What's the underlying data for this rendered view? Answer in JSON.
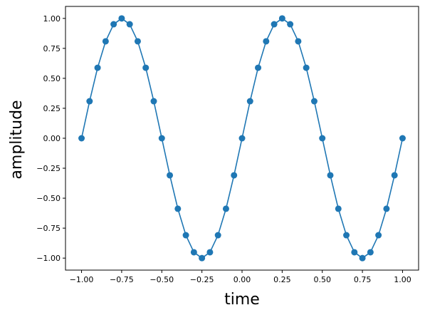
{
  "chart_data": {
    "type": "line",
    "xlabel": "time",
    "ylabel": "amplitude",
    "xlim": [
      -1.1,
      1.1
    ],
    "ylim": [
      -1.1,
      1.1
    ],
    "xticks": [
      -1.0,
      -0.75,
      -0.5,
      -0.25,
      0.0,
      0.25,
      0.5,
      0.75,
      1.0
    ],
    "xtick_labels": [
      "−1.00",
      "−0.75",
      "−0.50",
      "−0.25",
      "0.00",
      "0.25",
      "0.50",
      "0.75",
      "1.00"
    ],
    "yticks": [
      -1.0,
      -0.75,
      -0.5,
      -0.25,
      0.0,
      0.25,
      0.5,
      0.75,
      1.0
    ],
    "ytick_labels": [
      "−1.00",
      "−0.75",
      "−0.50",
      "−0.25",
      "0.00",
      "0.25",
      "0.50",
      "0.75",
      "1.00"
    ],
    "grid": false,
    "series": [
      {
        "color": "#1f77b4",
        "marker": "circle",
        "x": [
          -1.0,
          -0.95,
          -0.9,
          -0.85,
          -0.8,
          -0.75,
          -0.7,
          -0.65,
          -0.6,
          -0.55,
          -0.5,
          -0.45,
          -0.4,
          -0.35,
          -0.3,
          -0.25,
          -0.2,
          -0.15,
          -0.1,
          -0.05,
          0.0,
          0.05,
          0.1,
          0.15,
          0.2,
          0.25,
          0.3,
          0.35,
          0.4,
          0.45,
          0.5,
          0.55,
          0.6,
          0.65,
          0.7,
          0.75,
          0.8,
          0.85,
          0.9,
          0.95,
          1.0
        ],
        "y": [
          0.0,
          0.309,
          0.588,
          0.809,
          0.951,
          1.0,
          0.951,
          0.809,
          0.588,
          0.309,
          0.0,
          -0.309,
          -0.588,
          -0.809,
          -0.951,
          -1.0,
          -0.951,
          -0.809,
          -0.588,
          -0.309,
          0.0,
          0.309,
          0.588,
          0.809,
          0.951,
          1.0,
          0.951,
          0.809,
          0.588,
          0.309,
          0.0,
          -0.309,
          -0.588,
          -0.809,
          -0.951,
          -1.0,
          -0.951,
          -0.809,
          -0.588,
          -0.309,
          0.0
        ]
      }
    ]
  }
}
